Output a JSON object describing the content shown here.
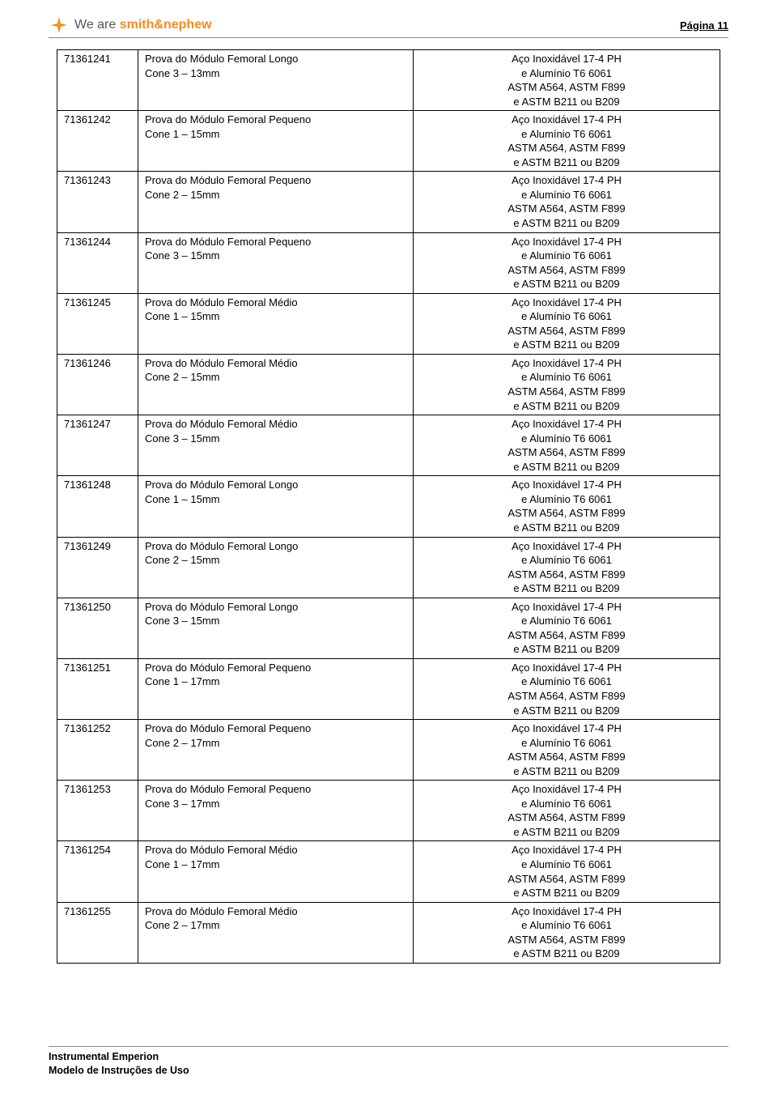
{
  "header": {
    "logo_prefix": "We are ",
    "brand_part1": "smith",
    "brand_amp": "&",
    "brand_part2": "nephew",
    "page_label": "Página 11"
  },
  "material_lines": [
    "Aço Inoxidável 17-4 PH",
    "e Alumínio T6 6061",
    "ASTM A564, ASTM F899",
    "e  ASTM B211 ou B209"
  ],
  "rows": [
    {
      "code": "71361241",
      "desc1": "Prova do Módulo Femoral Longo",
      "desc2": "Cone 3 – 13mm"
    },
    {
      "code": "71361242",
      "desc1": "Prova do Módulo Femoral Pequeno",
      "desc2": "Cone 1 – 15mm"
    },
    {
      "code": "71361243",
      "desc1": "Prova do Módulo Femoral Pequeno",
      "desc2": "Cone 2 – 15mm"
    },
    {
      "code": "71361244",
      "desc1": "Prova do Módulo Femoral Pequeno",
      "desc2": "Cone 3 – 15mm"
    },
    {
      "code": "71361245",
      "desc1": "Prova do Módulo Femoral Médio",
      "desc2": "Cone 1 – 15mm"
    },
    {
      "code": "71361246",
      "desc1": "Prova do Módulo Femoral Médio",
      "desc2": "Cone 2 – 15mm"
    },
    {
      "code": "71361247",
      "desc1": "Prova do Módulo Femoral Médio",
      "desc2": "Cone 3 – 15mm"
    },
    {
      "code": "71361248",
      "desc1": "Prova do Módulo Femoral Longo",
      "desc2": "Cone 1 – 15mm"
    },
    {
      "code": "71361249",
      "desc1": "Prova do Módulo Femoral Longo",
      "desc2": "Cone 2 – 15mm"
    },
    {
      "code": "71361250",
      "desc1": "Prova do Módulo Femoral Longo",
      "desc2": "Cone 3 – 15mm"
    },
    {
      "code": "71361251",
      "desc1": "Prova do Módulo Femoral Pequeno",
      "desc2": "Cone 1 – 17mm"
    },
    {
      "code": "71361252",
      "desc1": "Prova do Módulo Femoral Pequeno",
      "desc2": "Cone 2 – 17mm"
    },
    {
      "code": "71361253",
      "desc1": "Prova do Módulo Femoral Pequeno",
      "desc2": "Cone 3 – 17mm"
    },
    {
      "code": "71361254",
      "desc1": "Prova do Módulo Femoral Médio",
      "desc2": "Cone 1 – 17mm"
    },
    {
      "code": "71361255",
      "desc1": "Prova do Módulo Femoral Médio",
      "desc2": "Cone 2 – 17mm"
    }
  ],
  "footer": {
    "line1": "Instrumental Emperion",
    "line2": "Modelo de Instruções de Uso"
  },
  "colors": {
    "brand_orange": "#f68b1f",
    "text": "#000000",
    "rule": "#888888"
  }
}
